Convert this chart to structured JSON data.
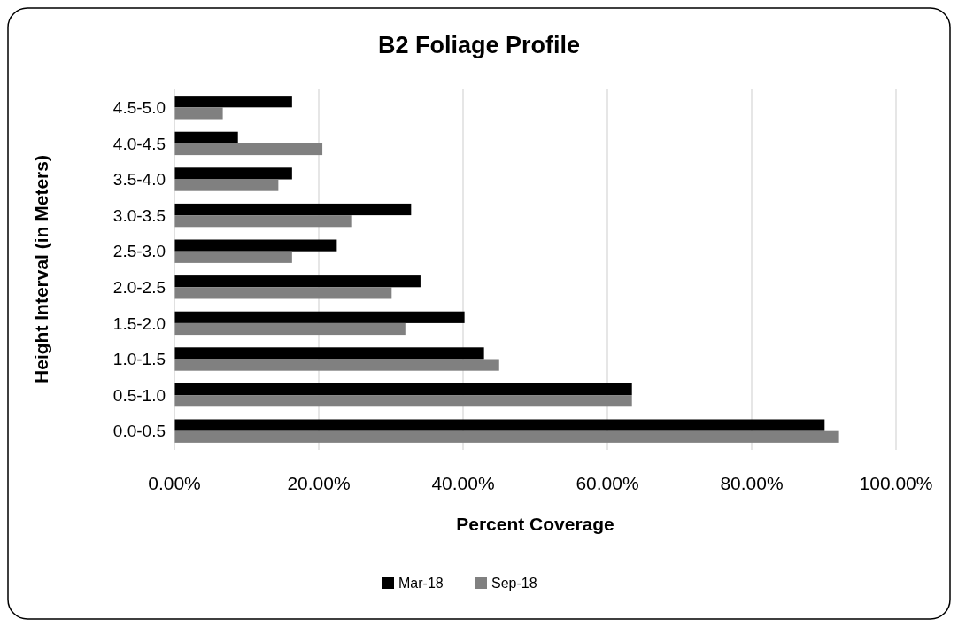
{
  "chart_data": {
    "type": "bar",
    "orientation": "horizontal",
    "title": "B2 Foliage Profile",
    "xlabel": "Percent Coverage",
    "ylabel": "Height Interval (in Meters)",
    "categories": [
      "4.5-5.0",
      "4.0-4.5",
      "3.5-4.0",
      "3.0-3.5",
      "2.5-3.0",
      "2.0-2.5",
      "1.5-2.0",
      "1.0-1.5",
      "0.5-1.0",
      "0.0-0.5"
    ],
    "series": [
      {
        "name": "Mar-18",
        "color": "#000000",
        "values": [
          16.3,
          8.8,
          16.3,
          32.8,
          22.5,
          34.1,
          40.2,
          42.9,
          63.4,
          90.1
        ]
      },
      {
        "name": "Sep-18",
        "color": "#808080",
        "values": [
          6.7,
          20.5,
          14.4,
          24.5,
          16.3,
          30.1,
          32.0,
          45.0,
          63.4,
          92.1
        ]
      }
    ],
    "xlim": [
      0,
      100
    ],
    "xticks": [
      {
        "value": 0,
        "label": "0.00%"
      },
      {
        "value": 20,
        "label": "20.00%"
      },
      {
        "value": 40,
        "label": "40.00%"
      },
      {
        "value": 60,
        "label": "60.00%"
      },
      {
        "value": 80,
        "label": "80.00%"
      },
      {
        "value": 100,
        "label": "100.00%"
      }
    ],
    "grid": "x",
    "legend": "bottom"
  }
}
